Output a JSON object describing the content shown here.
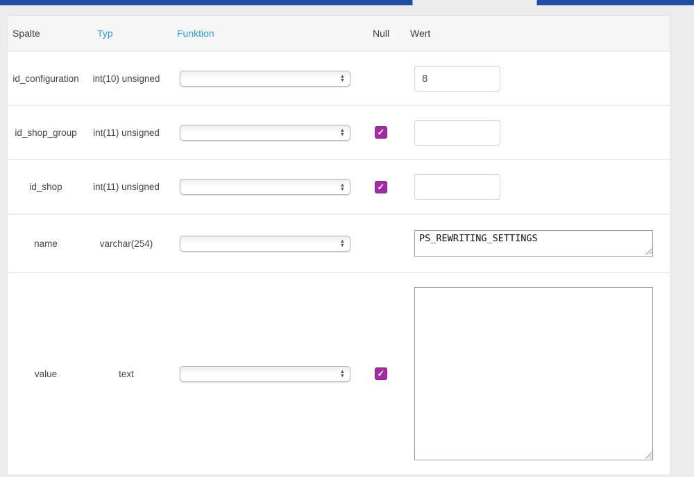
{
  "colors": {
    "topbar_blue": "#1d4fa0",
    "link_blue": "#2aa0d6",
    "checkbox_magenta": "#a42ba6",
    "page_bg": "#ececee",
    "header_bg": "#f6f6f7"
  },
  "header": {
    "columns": [
      {
        "label": "Spalte"
      },
      {
        "label": "Typ"
      },
      {
        "label": "Funktion"
      },
      {
        "label": "Null"
      },
      {
        "label": "Wert"
      }
    ]
  },
  "rows": [
    {
      "column": "id_configuration",
      "type": "int(10) unsigned",
      "function_selected": "",
      "null": {
        "shown": false,
        "checked": false
      },
      "value": {
        "kind": "input",
        "text": "8"
      }
    },
    {
      "column": "id_shop_group",
      "type": "int(11) unsigned",
      "function_selected": "",
      "null": {
        "shown": true,
        "checked": true
      },
      "value": {
        "kind": "input",
        "text": ""
      }
    },
    {
      "column": "id_shop",
      "type": "int(11) unsigned",
      "function_selected": "",
      "null": {
        "shown": true,
        "checked": true
      },
      "value": {
        "kind": "input",
        "text": ""
      }
    },
    {
      "column": "name",
      "type": "varchar(254)",
      "function_selected": "",
      "null": {
        "shown": false,
        "checked": false
      },
      "value": {
        "kind": "textarea",
        "text": "PS_REWRITING_SETTINGS"
      }
    },
    {
      "column": "value",
      "type": "text",
      "function_selected": "",
      "null": {
        "shown": true,
        "checked": true
      },
      "value": {
        "kind": "textarea-large",
        "text": ""
      }
    }
  ],
  "icons": {
    "checkmark": "✓",
    "select_arrow_up": "▲",
    "select_arrow_down": "▼"
  }
}
